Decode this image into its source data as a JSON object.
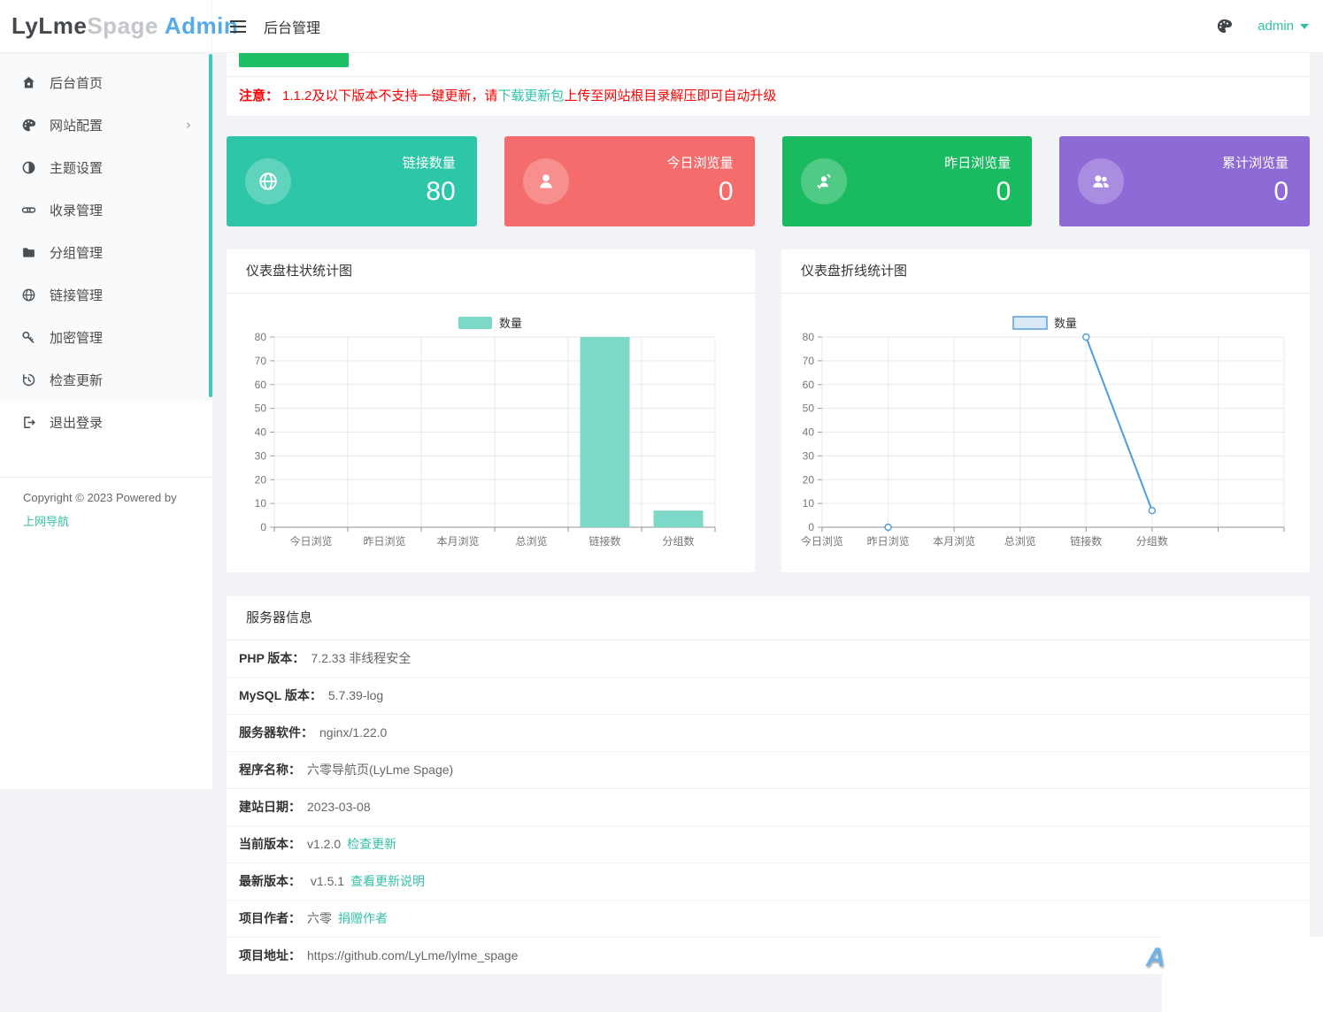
{
  "header": {
    "logo": {
      "part1": "LyLme",
      "part2": "Spage",
      "part3": "Admin"
    },
    "menu_icon": "hamburger-icon",
    "title": "后台管理",
    "theme_icon": "palette-icon",
    "user": "admin",
    "accent_color": "#36c0a5"
  },
  "sidebar": {
    "items": [
      {
        "label": "后台首页",
        "icon": "home-icon",
        "has_children": false
      },
      {
        "label": "网站配置",
        "icon": "palette-icon",
        "has_children": true
      },
      {
        "label": "主题设置",
        "icon": "contrast-icon",
        "has_children": false
      },
      {
        "label": "收录管理",
        "icon": "link-icon",
        "has_children": false
      },
      {
        "label": "分组管理",
        "icon": "folder-icon",
        "has_children": false
      },
      {
        "label": "链接管理",
        "icon": "globe-icon",
        "has_children": false
      },
      {
        "label": "加密管理",
        "icon": "key-icon",
        "has_children": false
      },
      {
        "label": "检查更新",
        "icon": "history-icon",
        "has_children": false
      }
    ],
    "logout": {
      "label": "退出登录",
      "icon": "logout-icon"
    },
    "copyright": "Copyright © 2023 Powered by",
    "copyright_link": "上网导航",
    "scrollbar_color": "#40c9b6"
  },
  "notice": {
    "prefix": "注意：",
    "text1": "1.1.2及以下版本不支持一键更新，请",
    "link": "下载更新包",
    "text2": "上传至网站根目录解压即可自动升级",
    "text_color": "#ff0000",
    "link_color": "#2fc3a7"
  },
  "update_button": {
    "color": "#1fbf66"
  },
  "stats": [
    {
      "label": "链接数量",
      "value": "80",
      "color": "#2ec6a9",
      "icon": "globe-icon"
    },
    {
      "label": "今日浏览量",
      "value": "0",
      "color": "#f56c6c",
      "icon": "user-icon"
    },
    {
      "label": "昨日浏览量",
      "value": "0",
      "color": "#1abb60",
      "icon": "user-refresh-icon"
    },
    {
      "label": "累计浏览量",
      "value": "0",
      "color": "#8d6ad6",
      "icon": "users-icon"
    }
  ],
  "chart_data": [
    {
      "type": "bar",
      "title": "仪表盘柱状统计图",
      "legend": "数量",
      "legend_position": "top",
      "categories": [
        "今日浏览",
        "昨日浏览",
        "本月浏览",
        "总浏览",
        "链接数",
        "分组数"
      ],
      "values": [
        0,
        0,
        0,
        0,
        80,
        7
      ],
      "ylim": [
        0,
        80
      ],
      "ytick": 10,
      "grid": true,
      "color": "#7cd8c7"
    },
    {
      "type": "line",
      "title": "仪表盘折线统计图",
      "legend": "数量",
      "legend_position": "top",
      "categories": [
        "今日浏览",
        "昨日浏览",
        "本月浏览",
        "总浏览",
        "链接数",
        "分组数"
      ],
      "values": [
        null,
        0,
        null,
        null,
        80,
        7
      ],
      "ylim": [
        0,
        80
      ],
      "ytick": 10,
      "grid": true,
      "color": "#4f9cd9",
      "legend_fill": "#d9e9f7",
      "legend_border": "#5b9fd9"
    }
  ],
  "server": {
    "title": "服务器信息",
    "rows": [
      {
        "label": "PHP 版本：",
        "value": "7.2.33 非线程安全",
        "link": ""
      },
      {
        "label": "MySQL 版本：",
        "value": "5.7.39-log",
        "link": ""
      },
      {
        "label": "服务器软件：",
        "value": "nginx/1.22.0",
        "link": ""
      },
      {
        "label": "程序名称：",
        "value": "六零导航页(LyLme Spage)",
        "link": ""
      },
      {
        "label": "建站日期：",
        "value": "2023-03-08",
        "link": ""
      },
      {
        "label": "当前版本：",
        "value": "v1.2.0",
        "link": "检查更新"
      },
      {
        "label": "最新版本：",
        "value": " v1.5.1",
        "link": "查看更新说明"
      },
      {
        "label": "项目作者：",
        "value": "六零",
        "link": "捐赠作者"
      },
      {
        "label": "项目地址：",
        "value": "https://github.com/LyLme/lylme_spage",
        "link": ""
      }
    ]
  },
  "misc": {
    "watermark": "A"
  }
}
